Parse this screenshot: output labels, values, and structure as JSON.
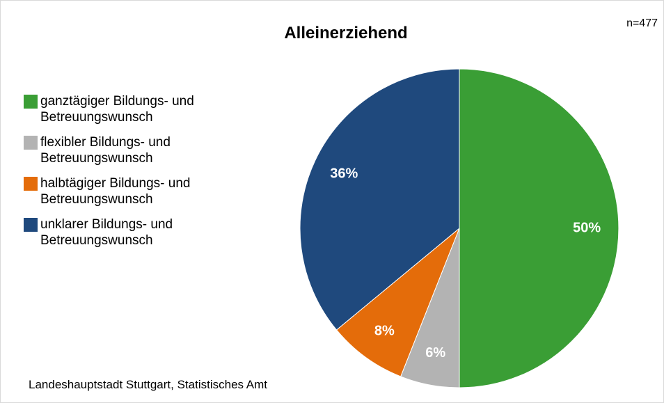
{
  "chart_data": {
    "type": "pie",
    "title": "Alleinerziehend",
    "annotation": "n=477",
    "source": "Landeshauptstadt Stuttgart, Statistisches Amt",
    "series": [
      {
        "name": "ganztägiger Bildungs- und Betreuungswunsch",
        "color": "#3a9e35",
        "values": [
          50
        ],
        "value_labels": [
          "50%"
        ]
      },
      {
        "name": "flexibler Bildungs- und Betreuungswunsch",
        "color": "#b3b3b3",
        "values": [
          6
        ],
        "value_labels": [
          "6%"
        ]
      },
      {
        "name": "halbtägiger Bildungs- und Betreuungswunsch",
        "color": "#e46c0a",
        "values": [
          8
        ],
        "value_labels": [
          "8%"
        ]
      },
      {
        "name": "unklarer Bildungs- und Betreuungswunsch",
        "color": "#1f497d",
        "values": [
          36
        ],
        "value_labels": [
          "36%"
        ]
      }
    ],
    "legend": "left"
  }
}
